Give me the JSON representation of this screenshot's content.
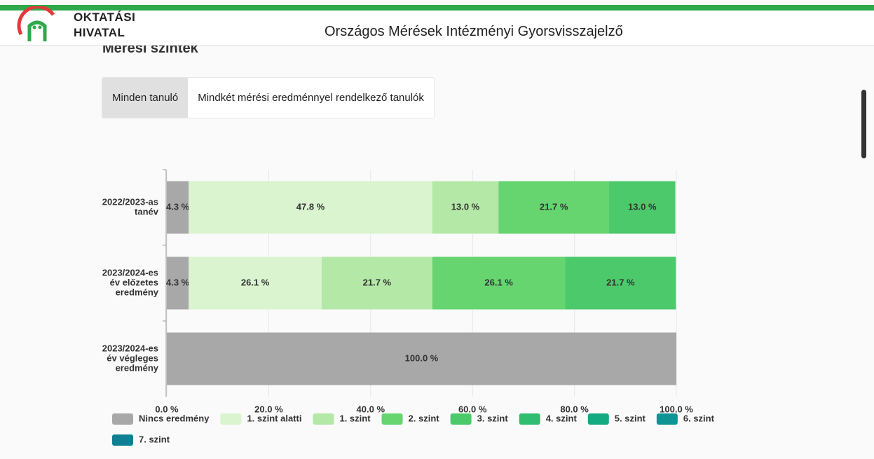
{
  "header": {
    "logo_line1": "OKTATÁSI",
    "logo_line2": "HIVATAL",
    "title": "Országos Mérések Intézményi Gyorsvisszajelző"
  },
  "section_title": "Mérési szintek",
  "tabs": [
    "Minden tanuló",
    "Mindkét mérési eredménnyel rendelkező tanulók"
  ],
  "chart_data": {
    "type": "stacked-barh",
    "categories": [
      [
        "2022/2023-as",
        "tanév"
      ],
      [
        "2023/2024-es",
        "év előzetes",
        "eredmény"
      ],
      [
        "2023/2024-es",
        "év végleges",
        "eredmény"
      ]
    ],
    "series": [
      {
        "name": "Nincs eredmény",
        "color": "#a8a8a8",
        "values": [
          4.3,
          4.3,
          100.0
        ],
        "value_labels": [
          "4.3 %",
          "4.3 %",
          "100.0 %"
        ]
      },
      {
        "name": "1. szint alatti",
        "color": "#d9f4cf",
        "values": [
          47.8,
          26.1,
          0
        ],
        "value_labels": [
          "47.8 %",
          "26.1 %",
          null
        ]
      },
      {
        "name": "1. szint",
        "color": "#b3e8a7",
        "values": [
          13.0,
          21.7,
          0
        ],
        "value_labels": [
          "13.0 %",
          "21.7 %",
          null
        ]
      },
      {
        "name": "2. szint",
        "color": "#66d46f",
        "values": [
          21.7,
          26.1,
          0
        ],
        "value_labels": [
          "21.7 %",
          "26.1 %",
          null
        ]
      },
      {
        "name": "3. szint",
        "color": "#4cc96a",
        "values": [
          13.0,
          21.7,
          0
        ],
        "value_labels": [
          "13.0 %",
          "21.7 %",
          null
        ]
      },
      {
        "name": "4. szint",
        "color": "#2fbd70",
        "values": [
          0,
          0,
          0
        ],
        "value_labels": [
          null,
          null,
          null
        ]
      },
      {
        "name": "5. szint",
        "color": "#13a981",
        "values": [
          0,
          0,
          0
        ],
        "value_labels": [
          null,
          null,
          null
        ]
      },
      {
        "name": "6. szint",
        "color": "#0e9495",
        "values": [
          0,
          0,
          0
        ],
        "value_labels": [
          null,
          null,
          null
        ]
      },
      {
        "name": "7. szint",
        "color": "#0f7f93",
        "values": [
          0,
          0,
          0
        ],
        "value_labels": [
          null,
          null,
          null
        ]
      }
    ],
    "xlim": [
      0,
      100
    ],
    "xticks": [
      {
        "value": 0,
        "label": "0.0 %"
      },
      {
        "value": 20,
        "label": "20.0 %"
      },
      {
        "value": 40,
        "label": "40.0 %"
      },
      {
        "value": 60,
        "label": "60.0 %"
      },
      {
        "value": 80,
        "label": "80.0 %"
      },
      {
        "value": 100,
        "label": "100.0 %"
      }
    ],
    "grid": true
  }
}
